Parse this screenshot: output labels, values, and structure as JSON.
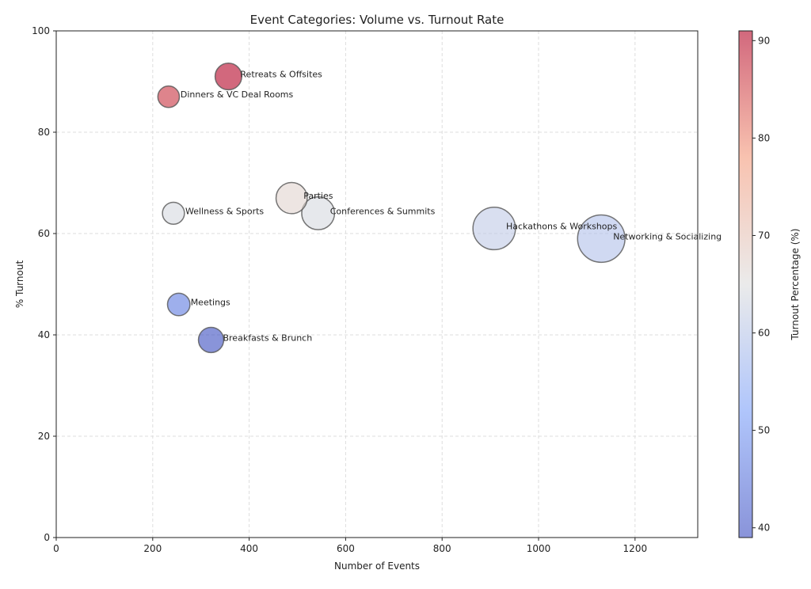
{
  "chart_data": {
    "type": "scatter",
    "title": "Event Categories: Volume vs. Turnout Rate",
    "xlabel": "Number of Events",
    "ylabel": "% Turnout",
    "xlim": [
      0,
      1330
    ],
    "ylim": [
      0,
      100
    ],
    "xticks": [
      "0",
      "200",
      "400",
      "600",
      "800",
      "1000",
      "1200"
    ],
    "yticks": [
      "0",
      "20",
      "40",
      "60",
      "80",
      "100"
    ],
    "grid": true,
    "bubble_size": "proportional to number of events",
    "colormap": "coolwarm",
    "colorbar": {
      "label": "Turnout Percentage (%)",
      "range": [
        39,
        91
      ],
      "ticks": [
        "40",
        "50",
        "60",
        "70",
        "80",
        "90"
      ]
    },
    "points": [
      {
        "label": "Retreats & Offsites",
        "x": 357,
        "y": 91
      },
      {
        "label": "Dinners & VC Deal Rooms",
        "x": 233,
        "y": 87
      },
      {
        "label": "Parties",
        "x": 488,
        "y": 67
      },
      {
        "label": "Wellness & Sports",
        "x": 243,
        "y": 64
      },
      {
        "label": "Conferences & Summits",
        "x": 543,
        "y": 64
      },
      {
        "label": "Hackathons & Workshops",
        "x": 908,
        "y": 61
      },
      {
        "label": "Networking & Socializing",
        "x": 1130,
        "y": 59
      },
      {
        "label": "Meetings",
        "x": 254,
        "y": 46
      },
      {
        "label": "Breakfasts & Brunch",
        "x": 321,
        "y": 39
      }
    ]
  }
}
